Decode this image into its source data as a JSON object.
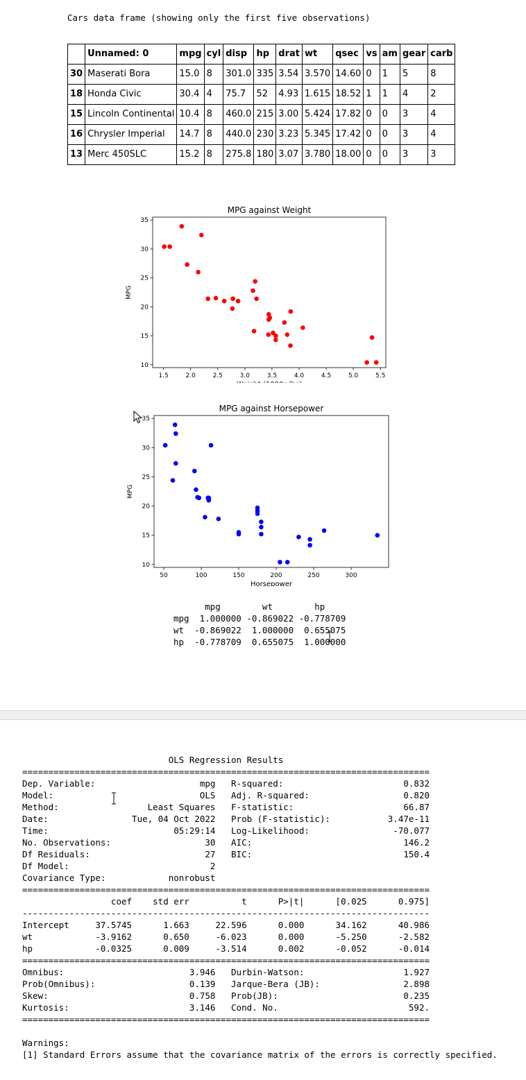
{
  "caption": "Cars data frame (showing only the first five observations)",
  "table": {
    "columns": [
      "",
      "Unnamed: 0",
      "mpg",
      "cyl",
      "disp",
      "hp",
      "drat",
      "wt",
      "qsec",
      "vs",
      "am",
      "gear",
      "carb"
    ],
    "rows": [
      [
        "30",
        "Maserati Bora",
        "15.0",
        "8",
        "301.0",
        "335",
        "3.54",
        "3.570",
        "14.60",
        "0",
        "1",
        "5",
        "8"
      ],
      [
        "18",
        "Honda Civic",
        "30.4",
        "4",
        "75.7",
        "52",
        "4.93",
        "1.615",
        "18.52",
        "1",
        "1",
        "4",
        "2"
      ],
      [
        "15",
        "Lincoln Continental",
        "10.4",
        "8",
        "460.0",
        "215",
        "3.00",
        "5.424",
        "17.82",
        "0",
        "0",
        "3",
        "4"
      ],
      [
        "16",
        "Chrysler Imperial",
        "14.7",
        "8",
        "440.0",
        "230",
        "3.23",
        "5.345",
        "17.42",
        "0",
        "0",
        "3",
        "4"
      ],
      [
        "13",
        "Merc 450SLC",
        "15.2",
        "8",
        "275.8",
        "180",
        "3.07",
        "3.780",
        "18.00",
        "0",
        "0",
        "3",
        "3"
      ]
    ]
  },
  "chart_data": [
    {
      "type": "scatter",
      "title": "MPG against Weight",
      "xlabel": "Weight (1000s lbs)",
      "ylabel": "MPG",
      "xlim": [
        1.3,
        5.6
      ],
      "ylim": [
        9.5,
        35.5
      ],
      "xticks": [
        "1.5",
        "2.0",
        "2.5",
        "3.0",
        "3.5",
        "4.0",
        "4.5",
        "5.0",
        "5.5"
      ],
      "yticks": [
        "10",
        "15",
        "20",
        "25",
        "30",
        "35"
      ],
      "color": "#ff0000",
      "points": [
        [
          1.513,
          30.4
        ],
        [
          1.615,
          30.4
        ],
        [
          1.835,
          33.9
        ],
        [
          1.935,
          27.3
        ],
        [
          2.14,
          26.0
        ],
        [
          2.2,
          32.4
        ],
        [
          2.32,
          21.4
        ],
        [
          2.465,
          21.5
        ],
        [
          2.62,
          21.0
        ],
        [
          2.77,
          19.7
        ],
        [
          2.78,
          21.4
        ],
        [
          2.875,
          21.0
        ],
        [
          3.15,
          22.8
        ],
        [
          3.17,
          15.8
        ],
        [
          3.19,
          24.4
        ],
        [
          3.215,
          21.4
        ],
        [
          3.435,
          15.2
        ],
        [
          3.44,
          18.7
        ],
        [
          3.44,
          17.8
        ],
        [
          3.46,
          18.1
        ],
        [
          3.52,
          15.5
        ],
        [
          3.57,
          15.0
        ],
        [
          3.57,
          14.3
        ],
        [
          3.73,
          17.3
        ],
        [
          3.78,
          15.2
        ],
        [
          3.84,
          13.3
        ],
        [
          3.845,
          19.2
        ],
        [
          4.07,
          16.4
        ],
        [
          5.25,
          10.4
        ],
        [
          5.345,
          14.7
        ],
        [
          5.424,
          10.4
        ]
      ]
    },
    {
      "type": "scatter",
      "title": "MPG against Horsepower",
      "xlabel": "Horsepower",
      "ylabel": "MPG",
      "xlim": [
        37,
        350
      ],
      "ylim": [
        9.5,
        35.5
      ],
      "xticks": [
        "50",
        "100",
        "150",
        "200",
        "250",
        "300"
      ],
      "yticks": [
        "10",
        "15",
        "20",
        "25",
        "30",
        "35"
      ],
      "color": "#0000ff",
      "points": [
        [
          52,
          30.4
        ],
        [
          62,
          24.4
        ],
        [
          65,
          33.9
        ],
        [
          66,
          32.4
        ],
        [
          66,
          27.3
        ],
        [
          91,
          26.0
        ],
        [
          93,
          22.8
        ],
        [
          95,
          21.5
        ],
        [
          97,
          21.4
        ],
        [
          105,
          18.1
        ],
        [
          109,
          21.4
        ],
        [
          110,
          21.0
        ],
        [
          110,
          21.4
        ],
        [
          110,
          21.0
        ],
        [
          113,
          30.4
        ],
        [
          123,
          17.8
        ],
        [
          150,
          15.5
        ],
        [
          150,
          15.2
        ],
        [
          175,
          19.2
        ],
        [
          175,
          19.7
        ],
        [
          175,
          18.7
        ],
        [
          180,
          17.3
        ],
        [
          180,
          16.4
        ],
        [
          180,
          15.2
        ],
        [
          205,
          10.4
        ],
        [
          215,
          10.4
        ],
        [
          230,
          14.7
        ],
        [
          245,
          14.3
        ],
        [
          245,
          13.3
        ],
        [
          264,
          15.8
        ],
        [
          335,
          15.0
        ]
      ]
    }
  ],
  "correlation_text": "      mpg        wt        hp\nmpg  1.000000 -0.869022 -0.778709\nwt  -0.869022  1.000000  0.655075\nhp  -0.778709  0.655075  1.000000",
  "ols_text": "                            OLS Regression Results                            \n==============================================================================\nDep. Variable:                    mpg   R-squared:                       0.832\nModel:                            OLS   Adj. R-squared:                  0.820\nMethod:                 Least Squares   F-statistic:                     66.87\nDate:                Tue, 04 Oct 2022   Prob (F-statistic):           3.47e-11\nTime:                        05:29:14   Log-Likelihood:                -70.077\nNo. Observations:                  30   AIC:                             146.2\nDf Residuals:                      27   BIC:                             150.4\nDf Model:                           2                                         \nCovariance Type:            nonrobust                                         \n==============================================================================\n                 coef    std err          t      P>|t|      [0.025      0.975]\n------------------------------------------------------------------------------\nIntercept     37.5745      1.663     22.596      0.000      34.162      40.986\nwt            -3.9162      0.650     -6.023      0.000      -5.250      -2.582\nhp            -0.0325      0.009     -3.514      0.002      -0.052      -0.014\n==============================================================================\nOmnibus:                        3.946   Durbin-Watson:                   1.927\nProb(Omnibus):                  0.139   Jarque-Bera (JB):                2.898\nSkew:                           0.758   Prob(JB):                        0.235\nKurtosis:                       3.146   Cond. No.                         592.\n==============================================================================",
  "warnings_text": "Warnings:\n[1] Standard Errors assume that the covariance matrix of the errors is correctly specified."
}
